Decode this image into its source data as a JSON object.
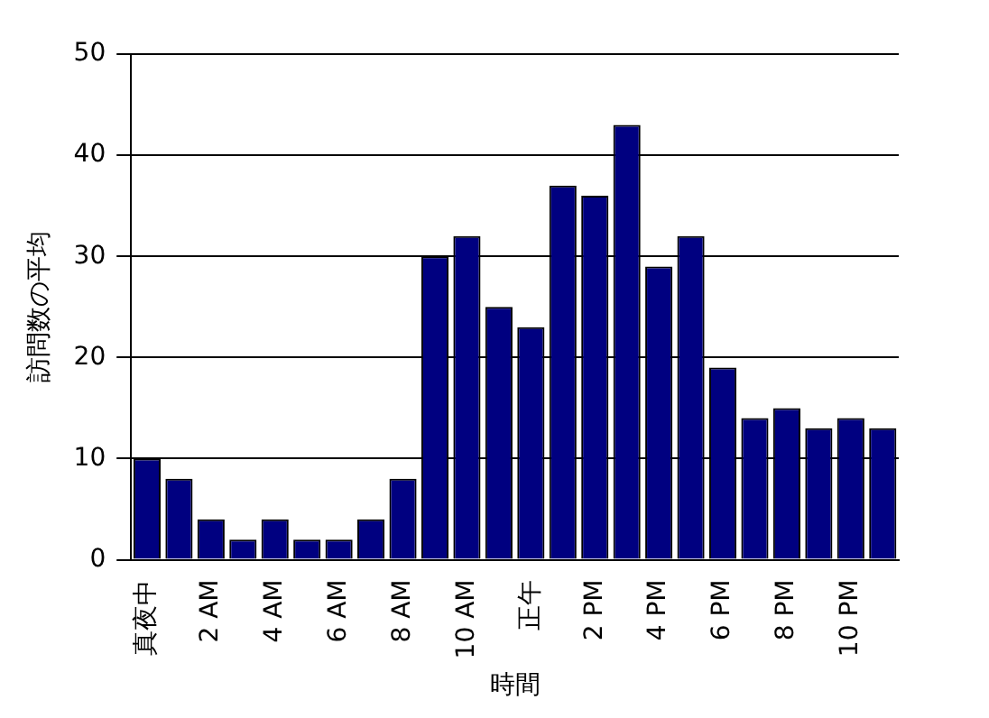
{
  "chart_data": {
    "type": "bar",
    "xlabel": "時間",
    "ylabel": "訪問数の平均",
    "categories": [
      "真夜中",
      null,
      "2 AM",
      null,
      "4 AM",
      null,
      "6 AM",
      null,
      "8 AM",
      null,
      "10 AM",
      null,
      "正午",
      null,
      "2 PM",
      null,
      "4 PM",
      null,
      "6 PM",
      null,
      "8 PM",
      null,
      "10 PM",
      null
    ],
    "values": [
      10,
      8,
      4,
      2,
      4,
      2,
      2,
      4,
      8,
      30,
      32,
      25,
      23,
      37,
      36,
      43,
      29,
      32,
      19,
      14,
      15,
      13,
      14,
      13
    ],
    "color": "#000080",
    "ylim": [
      0,
      50
    ],
    "yticks": [
      0,
      10,
      20,
      30,
      40,
      50
    ],
    "grid": "y",
    "legend": false
  }
}
